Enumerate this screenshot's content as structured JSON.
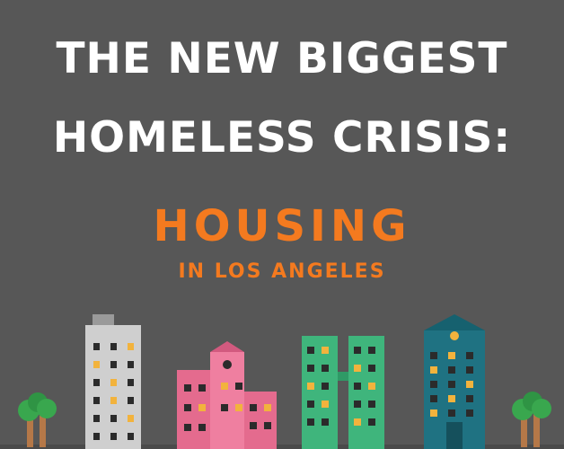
{
  "headline": {
    "line1": "THE NEW BIGGEST",
    "line2": "HOMELESS CRISIS:"
  },
  "subject": {
    "title": "HOUSING",
    "location": "IN LOS ANGELES"
  },
  "colors": {
    "background": "#575757",
    "headline": "#ffffff",
    "accent": "#f47a1f",
    "grey_building": "#cfcfcf",
    "pink_building": "#e46b8e",
    "green_building": "#3fb57c",
    "teal_building": "#1f7282",
    "window_dark": "#2b2b2b",
    "window_lit": "#f2b33d",
    "tree_leaf": "#39a74e",
    "tree_trunk": "#b57848"
  },
  "illustration": {
    "icons": [
      "grey-tower-icon",
      "pink-house-building-icon",
      "green-twin-tower-icon",
      "teal-tower-icon",
      "palm-tree-icon"
    ]
  }
}
